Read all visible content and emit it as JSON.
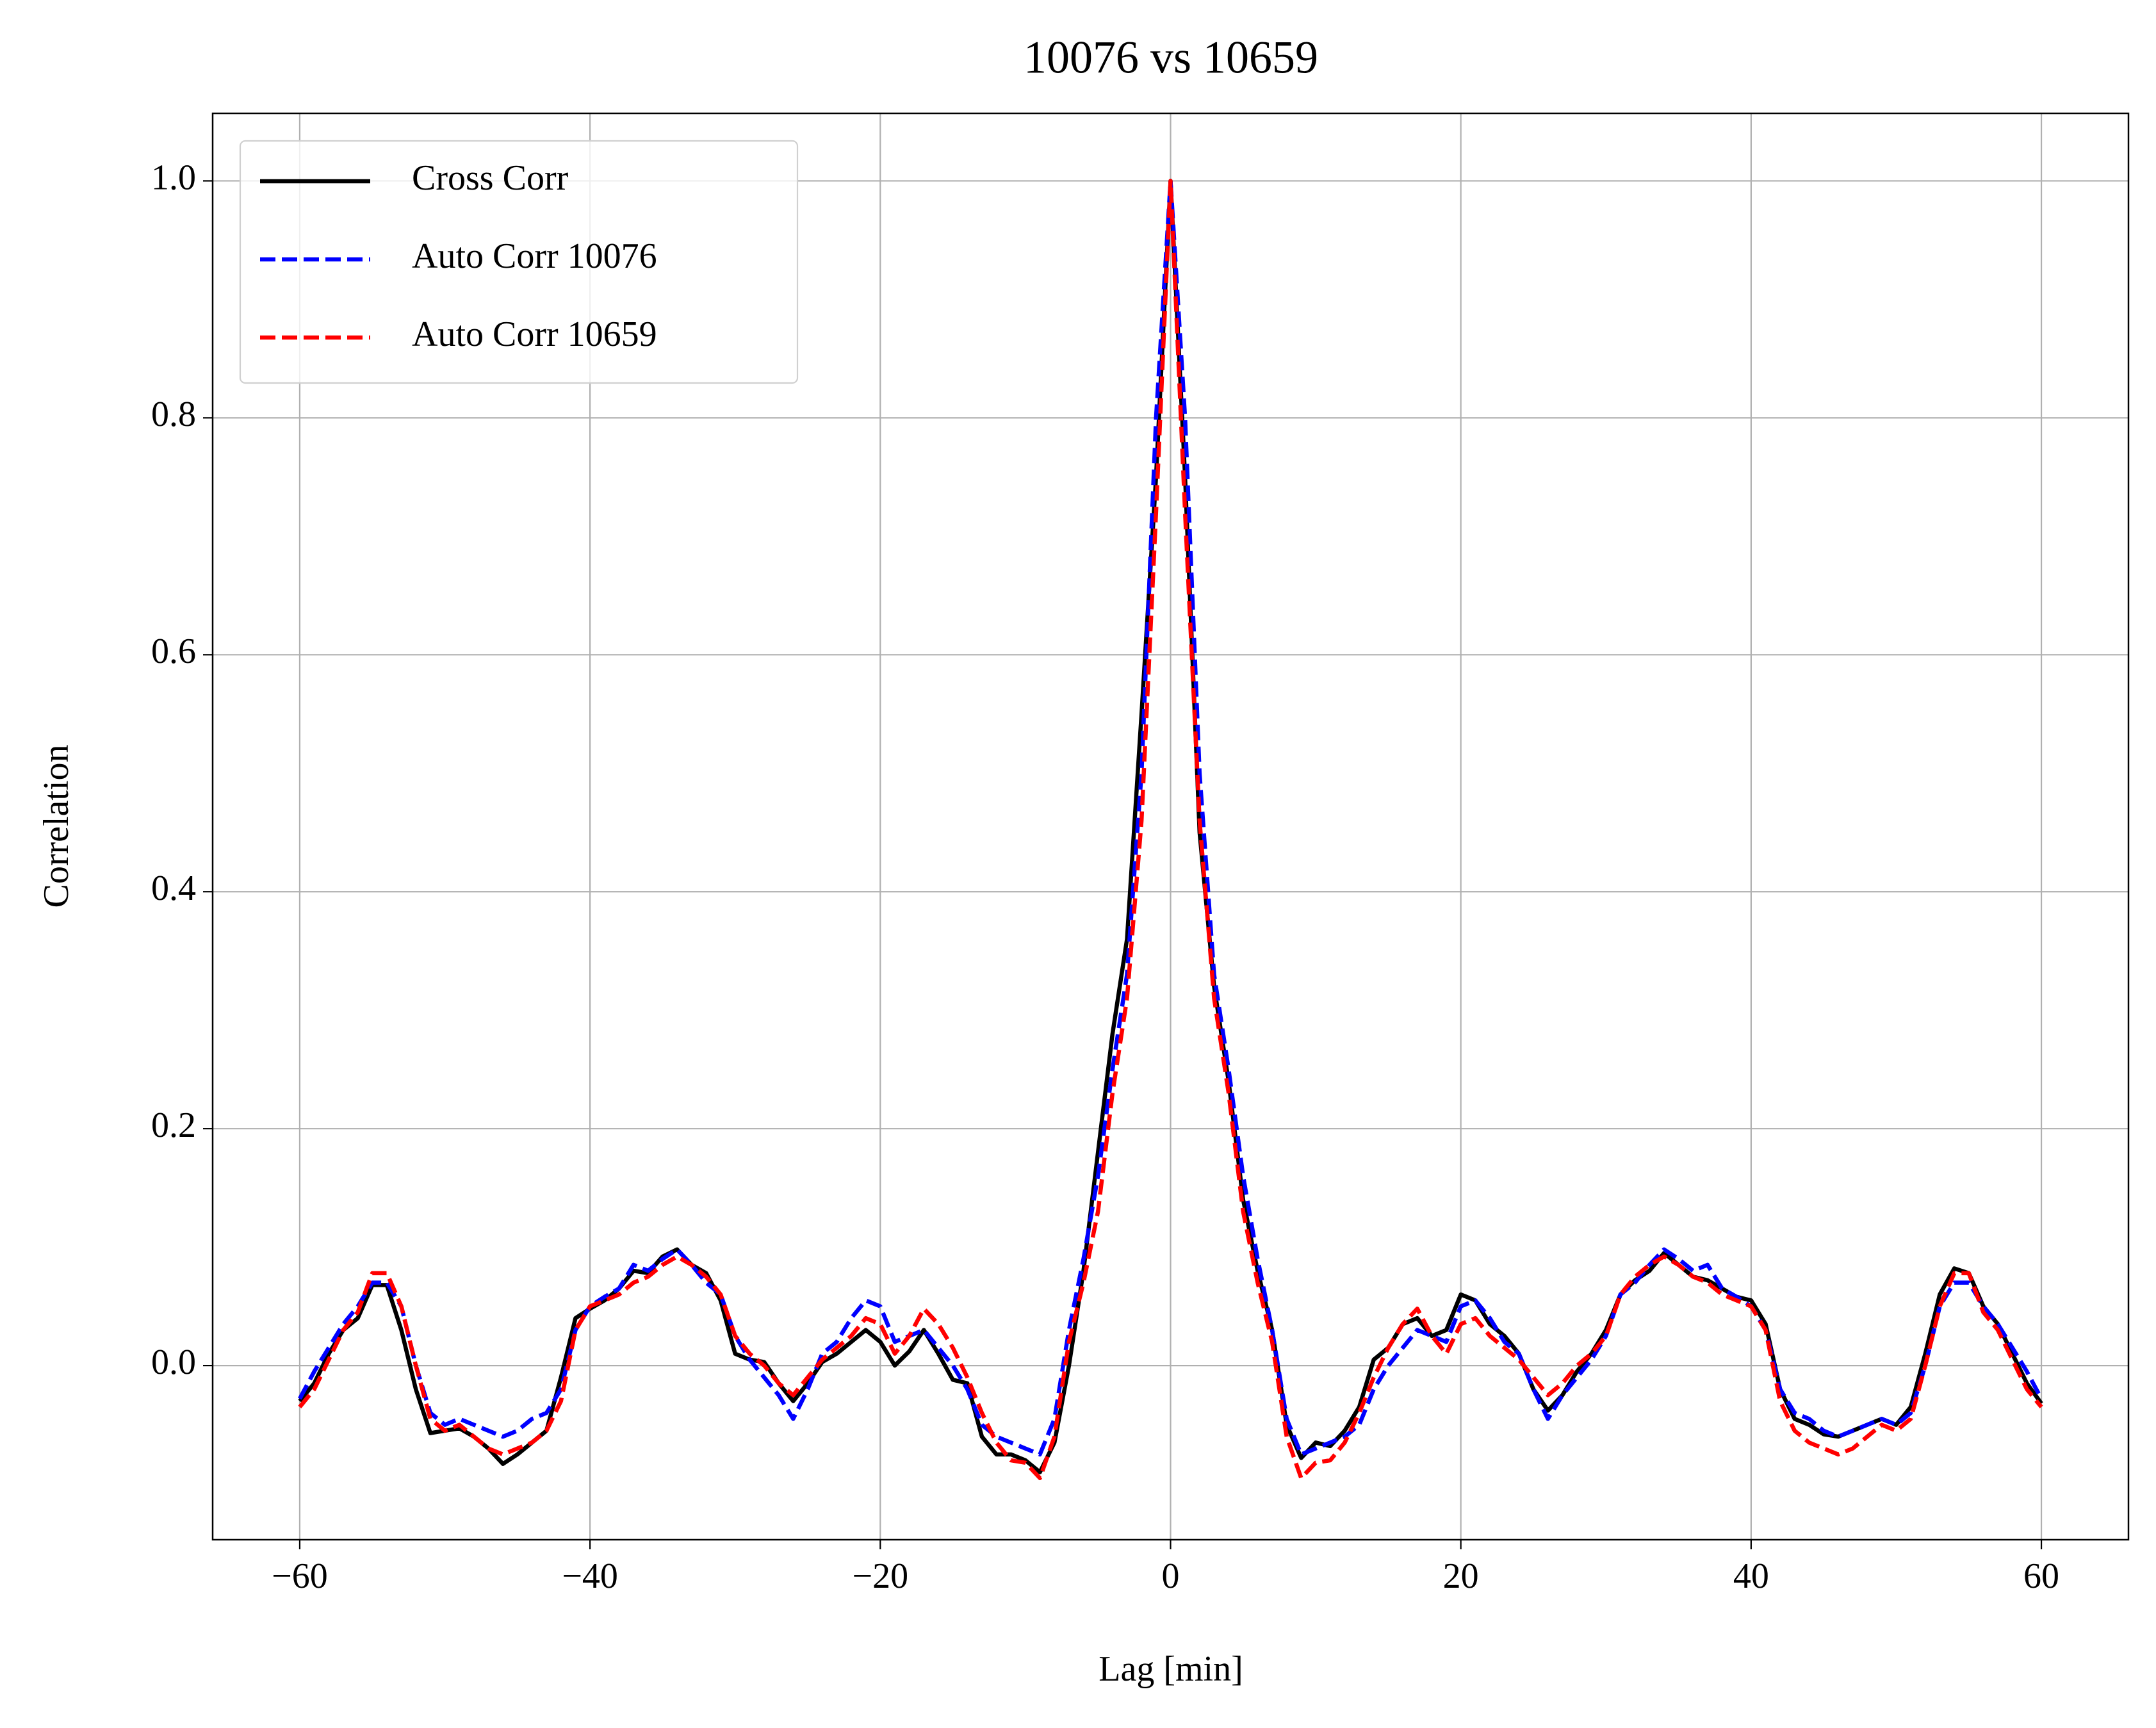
{
  "chart_data": {
    "type": "line",
    "title": "10076 vs 10659",
    "xlabel": "Lag [min]",
    "ylabel": "Correlation",
    "x": [
      -60,
      -59,
      -58,
      -57,
      -56,
      -55,
      -54,
      -53,
      -52,
      -51,
      -50,
      -49,
      -48,
      -47,
      -46,
      -45,
      -44,
      -43,
      -42,
      -41,
      -40,
      -39,
      -38,
      -37,
      -36,
      -35,
      -34,
      -33,
      -32,
      -31,
      -30,
      -29,
      -28,
      -27,
      -26,
      -25,
      -24,
      -23,
      -22,
      -21,
      -20,
      -19,
      -18,
      -17,
      -16,
      -15,
      -14,
      -13,
      -12,
      -11,
      -10,
      -9,
      -8,
      -7,
      -6,
      -5,
      -4,
      -3,
      -2,
      -1,
      0,
      1,
      2,
      3,
      4,
      5,
      6,
      7,
      8,
      9,
      10,
      11,
      12,
      13,
      14,
      15,
      16,
      17,
      18,
      19,
      20,
      21,
      22,
      23,
      24,
      25,
      26,
      27,
      28,
      29,
      30,
      31,
      32,
      33,
      34,
      35,
      36,
      37,
      38,
      39,
      40,
      41,
      42,
      43,
      44,
      45,
      46,
      47,
      48,
      49,
      50,
      51,
      52,
      53,
      54,
      55,
      56,
      57,
      58,
      59,
      60
    ],
    "series": [
      {
        "name": "Cross Corr",
        "color": "#000000",
        "dash": "solid",
        "values": [
          -0.03,
          -0.015,
          0.01,
          0.03,
          0.04,
          0.068,
          0.068,
          0.03,
          -0.02,
          -0.057,
          -0.055,
          -0.053,
          -0.06,
          -0.07,
          -0.083,
          -0.075,
          -0.065,
          -0.055,
          -0.01,
          0.04,
          0.048,
          0.055,
          0.065,
          0.08,
          0.078,
          0.092,
          0.098,
          0.085,
          0.078,
          0.055,
          0.01,
          0.005,
          0.003,
          -0.015,
          -0.03,
          -0.015,
          0.003,
          0.01,
          0.02,
          0.03,
          0.02,
          0.0,
          0.012,
          0.03,
          0.01,
          -0.012,
          -0.015,
          -0.06,
          -0.075,
          -0.075,
          -0.08,
          -0.09,
          -0.065,
          0.0,
          0.08,
          0.18,
          0.28,
          0.36,
          0.55,
          0.75,
          1.0,
          0.75,
          0.45,
          0.32,
          0.24,
          0.14,
          0.08,
          0.03,
          -0.05,
          -0.078,
          -0.065,
          -0.068,
          -0.055,
          -0.035,
          0.005,
          0.015,
          0.035,
          0.04,
          0.025,
          0.03,
          0.06,
          0.055,
          0.035,
          0.025,
          0.01,
          -0.02,
          -0.038,
          -0.025,
          -0.005,
          0.01,
          0.03,
          0.06,
          0.072,
          0.08,
          0.095,
          0.085,
          0.075,
          0.072,
          0.065,
          0.058,
          0.055,
          0.035,
          -0.02,
          -0.045,
          -0.05,
          -0.058,
          -0.06,
          -0.055,
          -0.05,
          -0.045,
          -0.05,
          -0.035,
          0.01,
          0.06,
          0.082,
          0.078,
          0.05,
          0.035,
          0.01,
          -0.015,
          -0.032
        ]
      },
      {
        "name": "Auto Corr 10076",
        "color": "#0000ff",
        "dash": "dashed",
        "values": [
          -0.028,
          -0.005,
          0.015,
          0.035,
          0.05,
          0.07,
          0.07,
          0.05,
          0.0,
          -0.04,
          -0.05,
          -0.045,
          -0.05,
          -0.055,
          -0.06,
          -0.055,
          -0.045,
          -0.04,
          -0.02,
          0.03,
          0.05,
          0.058,
          0.065,
          0.085,
          0.08,
          0.09,
          0.098,
          0.085,
          0.07,
          0.06,
          0.025,
          0.005,
          -0.01,
          -0.025,
          -0.045,
          -0.02,
          0.01,
          0.02,
          0.04,
          0.055,
          0.05,
          0.02,
          0.025,
          0.03,
          0.015,
          0.0,
          -0.02,
          -0.05,
          -0.06,
          -0.065,
          -0.07,
          -0.075,
          -0.045,
          0.03,
          0.09,
          0.16,
          0.25,
          0.33,
          0.5,
          0.8,
          1.0,
          0.8,
          0.5,
          0.33,
          0.25,
          0.16,
          0.09,
          0.03,
          -0.045,
          -0.075,
          -0.07,
          -0.065,
          -0.06,
          -0.05,
          -0.02,
          0.0,
          0.015,
          0.03,
          0.025,
          0.02,
          0.05,
          0.055,
          0.04,
          0.02,
          0.01,
          -0.02,
          -0.045,
          -0.025,
          -0.01,
          0.005,
          0.025,
          0.06,
          0.07,
          0.085,
          0.098,
          0.09,
          0.08,
          0.085,
          0.065,
          0.058,
          0.05,
          0.03,
          -0.02,
          -0.04,
          -0.045,
          -0.055,
          -0.06,
          -0.055,
          -0.05,
          -0.045,
          -0.05,
          -0.04,
          0.0,
          0.05,
          0.07,
          0.07,
          0.05,
          0.035,
          0.015,
          -0.005,
          -0.028
        ]
      },
      {
        "name": "Auto Corr 10659",
        "color": "#ff0000",
        "dash": "dashed",
        "values": [
          -0.035,
          -0.02,
          0.005,
          0.03,
          0.045,
          0.078,
          0.078,
          0.05,
          0.0,
          -0.045,
          -0.055,
          -0.05,
          -0.06,
          -0.07,
          -0.075,
          -0.07,
          -0.065,
          -0.055,
          -0.03,
          0.03,
          0.05,
          0.055,
          0.06,
          0.07,
          0.075,
          0.085,
          0.092,
          0.085,
          0.075,
          0.06,
          0.025,
          0.01,
          0.0,
          -0.015,
          -0.025,
          -0.01,
          0.005,
          0.015,
          0.025,
          0.04,
          0.035,
          0.01,
          0.025,
          0.048,
          0.035,
          0.015,
          -0.01,
          -0.04,
          -0.065,
          -0.08,
          -0.082,
          -0.095,
          -0.06,
          0.02,
          0.07,
          0.13,
          0.23,
          0.31,
          0.46,
          0.72,
          1.0,
          0.72,
          0.46,
          0.31,
          0.23,
          0.13,
          0.07,
          0.02,
          -0.06,
          -0.095,
          -0.082,
          -0.08,
          -0.065,
          -0.04,
          -0.01,
          0.015,
          0.035,
          0.048,
          0.025,
          0.01,
          0.035,
          0.04,
          0.025,
          0.015,
          0.005,
          -0.01,
          -0.025,
          -0.015,
          0.0,
          0.01,
          0.025,
          0.06,
          0.075,
          0.085,
          0.092,
          0.085,
          0.075,
          0.07,
          0.06,
          0.055,
          0.05,
          0.03,
          -0.03,
          -0.055,
          -0.065,
          -0.07,
          -0.075,
          -0.07,
          -0.06,
          -0.05,
          -0.055,
          -0.045,
          0.0,
          0.05,
          0.078,
          0.078,
          0.045,
          0.03,
          0.005,
          -0.02,
          -0.035
        ]
      }
    ],
    "xlim": [
      -66,
      66
    ],
    "xticks": [
      {
        "value": -60,
        "label": "−60"
      },
      {
        "value": -40,
        "label": "−40"
      },
      {
        "value": -20,
        "label": "−20"
      },
      0,
      20,
      40,
      60
    ],
    "ylim": [
      -0.147,
      1.057
    ],
    "yticks": [
      {
        "value": 0,
        "label": "0.0"
      },
      0.2,
      0.4,
      0.6,
      0.8,
      {
        "value": 1,
        "label": "1.0"
      }
    ],
    "grid": true,
    "legend": "upper left"
  }
}
